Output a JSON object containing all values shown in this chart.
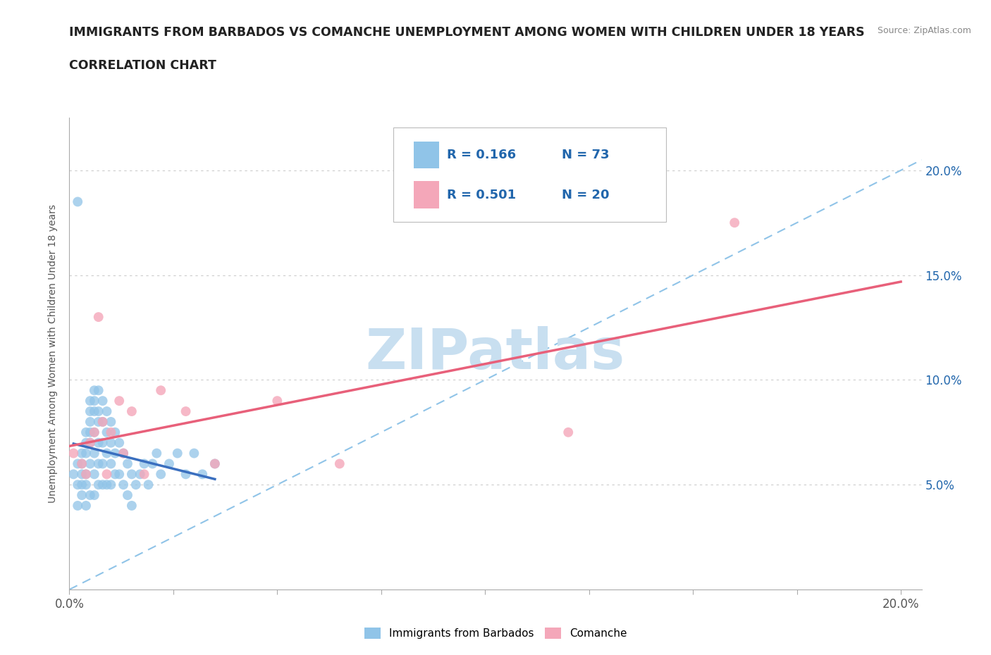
{
  "title": "IMMIGRANTS FROM BARBADOS VS COMANCHE UNEMPLOYMENT AMONG WOMEN WITH CHILDREN UNDER 18 YEARS",
  "subtitle": "CORRELATION CHART",
  "source": "Source: ZipAtlas.com",
  "ylabel_label": "Unemployment Among Women with Children Under 18 years",
  "xlim": [
    0.0,
    0.205
  ],
  "ylim": [
    0.0,
    0.225
  ],
  "x_ticks": [
    0.0,
    0.025,
    0.05,
    0.075,
    0.1,
    0.125,
    0.15,
    0.175,
    0.2
  ],
  "x_tick_labels": [
    "0.0%",
    "",
    "",
    "",
    "",
    "",
    "",
    "",
    "20.0%"
  ],
  "y_ticks": [
    0.0,
    0.05,
    0.1,
    0.15,
    0.2
  ],
  "y_tick_labels": [
    "",
    "5.0%",
    "10.0%",
    "15.0%",
    "20.0%"
  ],
  "blue_color": "#90c4e8",
  "pink_color": "#f4a7b9",
  "blue_line_color": "#3a6fbf",
  "pink_line_color": "#e8607a",
  "dashed_line_color": "#90c4e8",
  "legend_color": "#2166ac",
  "watermark_color": "#c8dff0",
  "R_blue": 0.166,
  "N_blue": 73,
  "R_pink": 0.501,
  "N_pink": 20,
  "blue_scatter_x": [
    0.001,
    0.002,
    0.002,
    0.002,
    0.003,
    0.003,
    0.003,
    0.003,
    0.003,
    0.004,
    0.004,
    0.004,
    0.004,
    0.004,
    0.004,
    0.005,
    0.005,
    0.005,
    0.005,
    0.005,
    0.005,
    0.005,
    0.006,
    0.006,
    0.006,
    0.006,
    0.006,
    0.006,
    0.006,
    0.007,
    0.007,
    0.007,
    0.007,
    0.007,
    0.007,
    0.008,
    0.008,
    0.008,
    0.008,
    0.008,
    0.009,
    0.009,
    0.009,
    0.009,
    0.01,
    0.01,
    0.01,
    0.01,
    0.011,
    0.011,
    0.011,
    0.012,
    0.012,
    0.013,
    0.013,
    0.014,
    0.014,
    0.015,
    0.015,
    0.016,
    0.017,
    0.018,
    0.019,
    0.02,
    0.021,
    0.022,
    0.024,
    0.026,
    0.028,
    0.03,
    0.032,
    0.035,
    0.002
  ],
  "blue_scatter_y": [
    0.055,
    0.06,
    0.05,
    0.04,
    0.065,
    0.06,
    0.055,
    0.05,
    0.045,
    0.075,
    0.07,
    0.065,
    0.055,
    0.05,
    0.04,
    0.09,
    0.085,
    0.08,
    0.075,
    0.07,
    0.06,
    0.045,
    0.095,
    0.09,
    0.085,
    0.075,
    0.065,
    0.055,
    0.045,
    0.095,
    0.085,
    0.08,
    0.07,
    0.06,
    0.05,
    0.09,
    0.08,
    0.07,
    0.06,
    0.05,
    0.085,
    0.075,
    0.065,
    0.05,
    0.08,
    0.07,
    0.06,
    0.05,
    0.075,
    0.065,
    0.055,
    0.07,
    0.055,
    0.065,
    0.05,
    0.06,
    0.045,
    0.055,
    0.04,
    0.05,
    0.055,
    0.06,
    0.05,
    0.06,
    0.065,
    0.055,
    0.06,
    0.065,
    0.055,
    0.065,
    0.055,
    0.06,
    0.185
  ],
  "pink_scatter_x": [
    0.001,
    0.003,
    0.004,
    0.005,
    0.006,
    0.007,
    0.008,
    0.009,
    0.01,
    0.012,
    0.013,
    0.015,
    0.018,
    0.022,
    0.028,
    0.035,
    0.05,
    0.065,
    0.12,
    0.16
  ],
  "pink_scatter_y": [
    0.065,
    0.06,
    0.055,
    0.07,
    0.075,
    0.13,
    0.08,
    0.055,
    0.075,
    0.09,
    0.065,
    0.085,
    0.055,
    0.095,
    0.085,
    0.06,
    0.09,
    0.06,
    0.075,
    0.175
  ]
}
